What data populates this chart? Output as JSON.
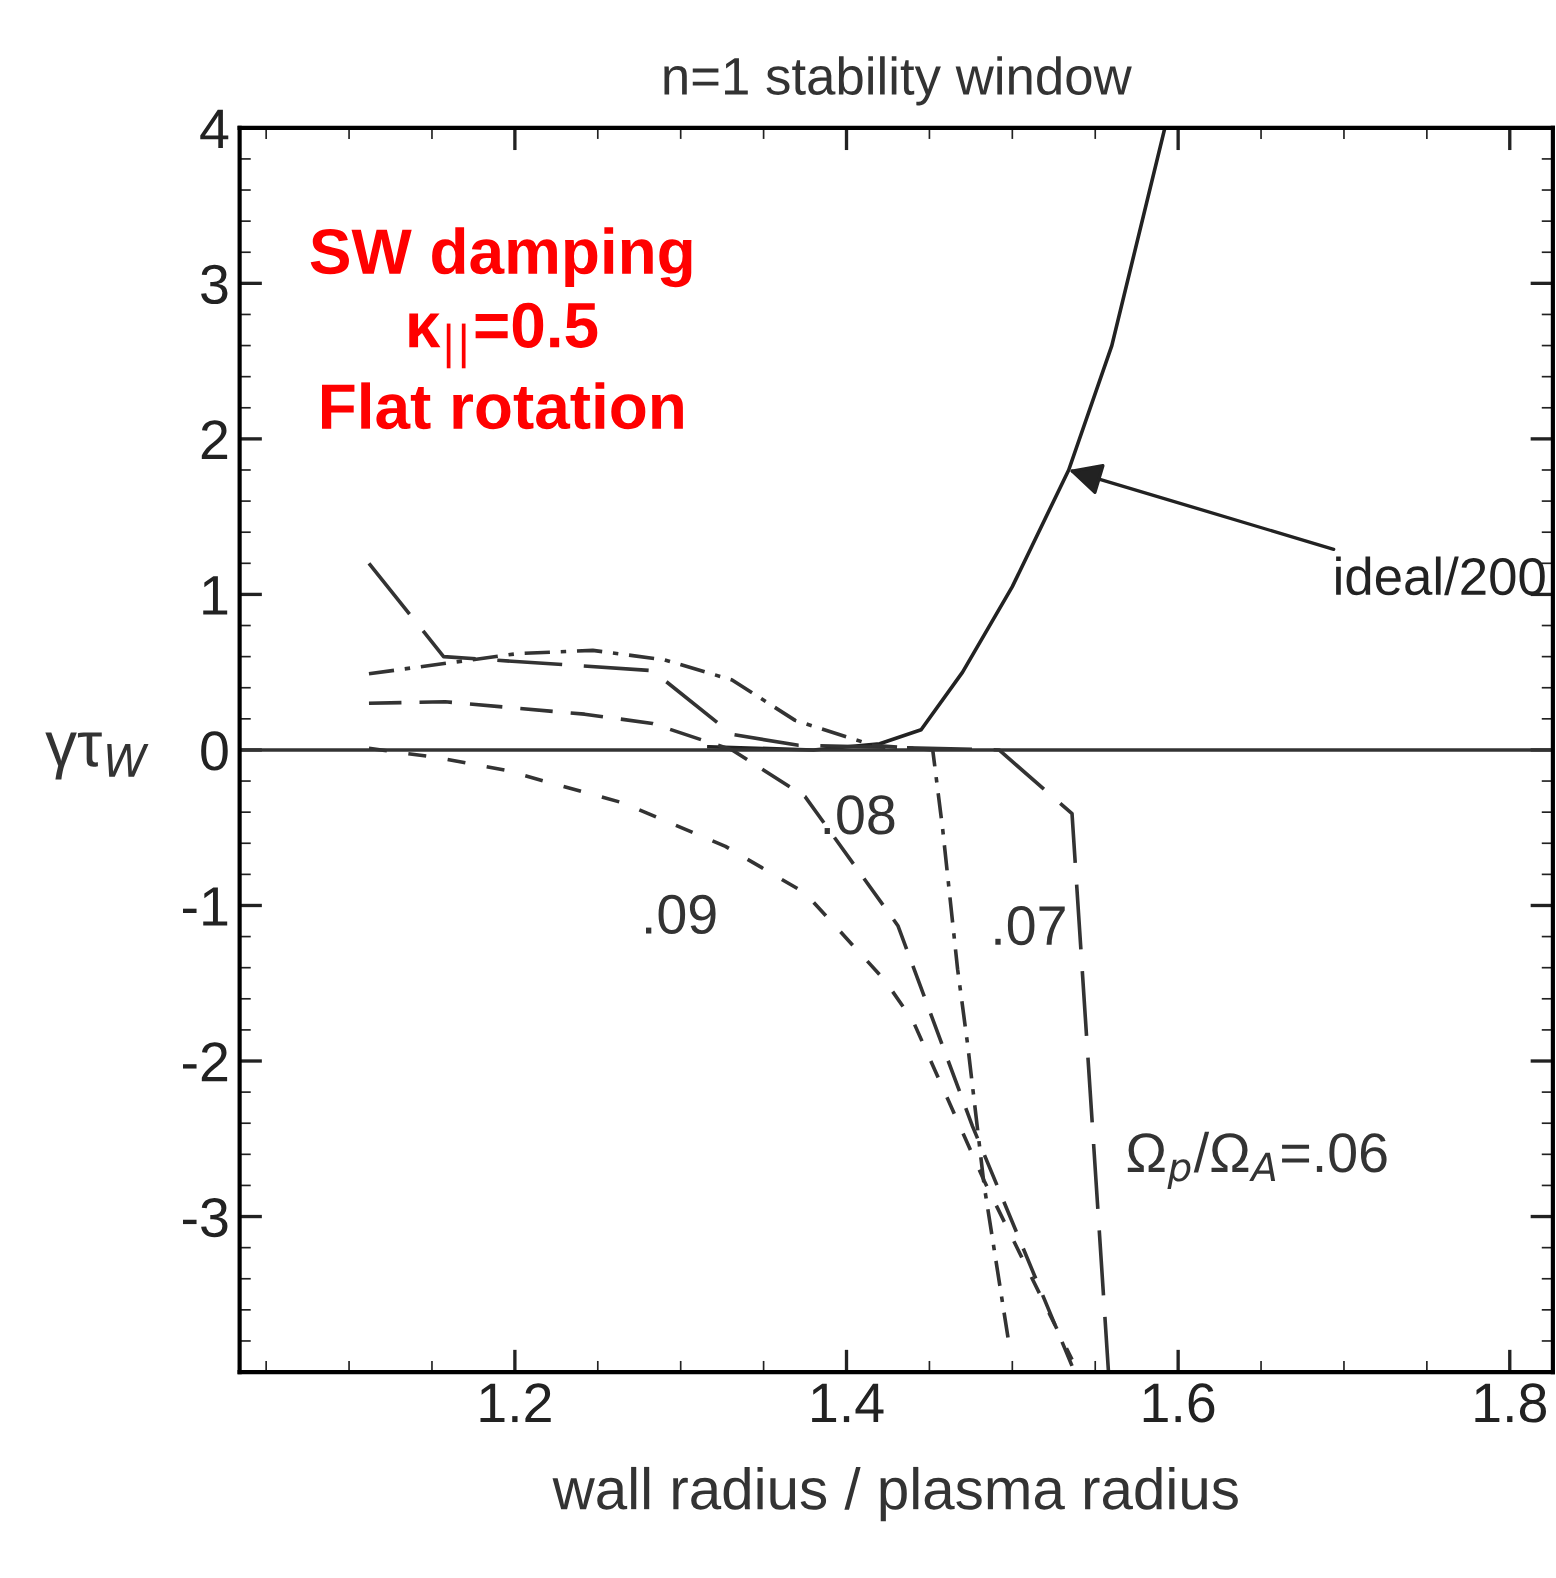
{
  "chart_data": {
    "type": "line",
    "title": "n=1 stability window",
    "xlabel": "wall radius / plasma radius",
    "ylabel": "γτ$_{W}$",
    "xlim": [
      1.034,
      1.826
    ],
    "xticks": [
      1.2,
      1.4,
      1.6,
      1.8
    ],
    "ylim": [
      -4,
      4
    ],
    "yticks": [
      -3,
      -2,
      -1,
      0,
      1,
      2,
      3,
      4
    ],
    "grid": false,
    "ref_lines": [
      {
        "axis": "y",
        "value": 0,
        "color": "#333333",
        "line_style": "solid"
      }
    ],
    "series": [
      {
        "color": "#222222",
        "line_style": "solid",
        "x": [
          1.317,
          1.38,
          1.42,
          1.445,
          1.47,
          1.5,
          1.534,
          1.56,
          1.592
        ],
        "values": [
          0.02,
          0.0,
          0.04,
          0.13,
          0.5,
          1.05,
          1.8,
          2.6,
          4.0
        ]
      },
      {
        "color": "#333333",
        "line_style": "longdash",
        "x": [
          1.112,
          1.157,
          1.283,
          1.331,
          1.371,
          1.492,
          1.536,
          1.558
        ],
        "values": [
          1.2,
          0.6,
          0.51,
          0.1,
          0.03,
          0.0,
          -0.41,
          -4.0
        ]
      },
      {
        "color": "#333333",
        "line_style": "dashdot",
        "x": [
          1.112,
          1.202,
          1.247,
          1.29,
          1.331,
          1.369,
          1.416,
          1.452,
          1.458,
          1.467,
          1.473,
          1.483,
          1.498
        ],
        "values": [
          0.49,
          0.62,
          0.64,
          0.58,
          0.45,
          0.19,
          0.03,
          0.0,
          -0.51,
          -1.41,
          -1.89,
          -2.8,
          -3.82
        ]
      },
      {
        "color": "#333333",
        "line_style": "dashed",
        "x": [
          1.112,
          1.158,
          1.242,
          1.283,
          1.331,
          1.375,
          1.431,
          1.476,
          1.536
        ],
        "values": [
          0.3,
          0.31,
          0.23,
          0.17,
          0.0,
          -0.3,
          -1.13,
          -2.42,
          -3.96
        ]
      },
      {
        "color": "#333333",
        "line_style": "shortdash",
        "x": [
          1.112,
          1.154,
          1.194,
          1.265,
          1.327,
          1.375,
          1.423,
          1.44,
          1.483,
          1.536
        ],
        "values": [
          0.01,
          -0.05,
          -0.13,
          -0.34,
          -0.62,
          -0.92,
          -1.48,
          -1.74,
          -2.77,
          -3.92
        ]
      }
    ],
    "annotations": [
      "SW damping\nκ$_{||}$=0.5\nFlat rotation",
      {
        "text": "ideal/200",
        "x": 1.534,
        "y": 1.8
      },
      ".09",
      ".08",
      ".07",
      "Ω$_{p}$/Ω$_{A}$=.06"
    ]
  }
}
